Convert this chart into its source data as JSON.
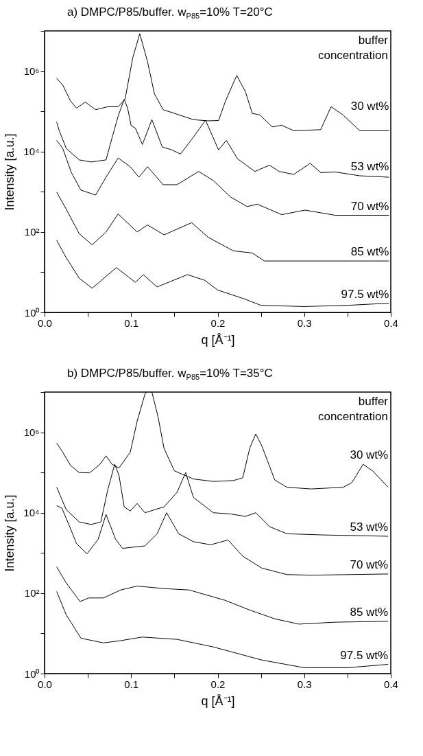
{
  "chart_data": [
    {
      "type": "line",
      "title": "a) DMPC/P85/buffer. w$_{P85}$=10% T=20°C",
      "xlabel": "q [Å⁻¹]",
      "ylabel": "Intensity [a.u.]",
      "legend_title": "buffer concentration",
      "log": true,
      "xlim": [
        0,
        0.4
      ],
      "ylim": [
        1,
        10000000
      ],
      "xticks": [
        {
          "value": 0,
          "label": "0.0"
        },
        {
          "value": 0.05,
          "label": null
        },
        0.1,
        {
          "value": 0.15,
          "label": null
        },
        0.2,
        {
          "value": 0.25,
          "label": null
        },
        0.3,
        {
          "value": 0.35,
          "label": null
        },
        0.4
      ],
      "yticks": [
        {
          "value": 1,
          "label": "10⁰"
        },
        {
          "value": 10,
          "label": null
        },
        {
          "value": 100,
          "label": "10²"
        },
        {
          "value": 1000,
          "label": null
        },
        {
          "value": 10000,
          "label": "10⁴"
        },
        {
          "value": 100000,
          "label": null
        },
        {
          "value": 1000000,
          "label": "10⁶"
        },
        {
          "value": 10000000,
          "label": null
        }
      ],
      "series": [
        {
          "name": "30 wt%",
          "color": "#000000",
          "x": [
            0.014,
            0.021,
            0.03,
            0.037,
            0.047,
            0.059,
            0.073,
            0.085,
            0.093,
            0.102,
            0.11,
            0.119,
            0.127,
            0.137,
            0.15,
            0.172,
            0.189,
            0.201,
            0.209,
            0.222,
            0.232,
            0.24,
            0.249,
            0.263,
            0.274,
            0.288,
            0.319,
            0.331,
            0.345,
            0.364,
            0.398
          ],
          "values": [
            660000,
            450000,
            180000,
            120000,
            170000,
            110000,
            130000,
            130000,
            200000,
            2200000,
            8500000,
            1700000,
            270000,
            110000,
            89000,
            62000,
            58000,
            59000,
            180000,
            780000,
            310000,
            89000,
            81000,
            41000,
            45000,
            33000,
            35000,
            130000,
            81000,
            33000,
            33000
          ]
        },
        {
          "name": "53 wt%",
          "color": "#000000",
          "x": [
            0.014,
            0.017,
            0.025,
            0.04,
            0.054,
            0.071,
            0.078,
            0.085,
            0.092,
            0.096,
            0.1,
            0.105,
            0.113,
            0.124,
            0.136,
            0.147,
            0.157,
            0.17,
            0.186,
            0.201,
            0.21,
            0.223,
            0.243,
            0.26,
            0.271,
            0.288,
            0.307,
            0.319,
            0.336,
            0.364,
            0.398
          ],
          "values": [
            54000,
            33000,
            12000,
            6200,
            5500,
            6200,
            22000,
            76000,
            200000,
            120000,
            44000,
            38000,
            15000,
            62000,
            13000,
            11000,
            8700,
            20000,
            60000,
            11000,
            19000,
            6600,
            3200,
            4600,
            3200,
            2700,
            5100,
            3000,
            3100,
            2500,
            2300
          ]
        },
        {
          "name": "70 wt%",
          "color": "#000000",
          "x": [
            0.014,
            0.021,
            0.031,
            0.042,
            0.059,
            0.071,
            0.085,
            0.099,
            0.109,
            0.119,
            0.137,
            0.153,
            0.178,
            0.195,
            0.215,
            0.234,
            0.246,
            0.274,
            0.301,
            0.336,
            0.398
          ],
          "values": [
            19000,
            12000,
            3000,
            1100,
            830,
            2300,
            6900,
            4200,
            2300,
            4200,
            1500,
            1500,
            3200,
            1900,
            740,
            430,
            490,
            270,
            350,
            260,
            260
          ]
        },
        {
          "name": "85 wt%",
          "color": "#000000",
          "x": [
            0.014,
            0.025,
            0.04,
            0.055,
            0.071,
            0.085,
            0.107,
            0.119,
            0.138,
            0.17,
            0.189,
            0.218,
            0.24,
            0.254,
            0.294,
            0.398
          ],
          "values": [
            980,
            370,
            91,
            48,
            100,
            280,
            100,
            150,
            85,
            170,
            74,
            34,
            30,
            19,
            19,
            19
          ]
        },
        {
          "name": "97.5 wt%",
          "color": "#000000",
          "x": [
            0.014,
            0.025,
            0.04,
            0.055,
            0.083,
            0.105,
            0.114,
            0.13,
            0.165,
            0.185,
            0.2,
            0.23,
            0.25,
            0.3,
            0.35,
            0.398
          ],
          "values": [
            62,
            23,
            7.1,
            4.0,
            13,
            5.6,
            8.7,
            4.3,
            8.7,
            6.3,
            3.6,
            2.2,
            1.5,
            1.4,
            1.5,
            1.7
          ]
        }
      ]
    },
    {
      "type": "line",
      "title": "b) DMPC/P85/buffer. w$_{P85}$=10% T=35°C",
      "xlabel": "q [Å⁻¹]",
      "ylabel": "Intensity [a.u.]",
      "legend_title": "buffer concentration",
      "log": true,
      "xlim": [
        0,
        0.4
      ],
      "ylim": [
        1,
        10000000
      ],
      "xticks": [
        {
          "value": 0,
          "label": "0.0"
        },
        {
          "value": 0.05,
          "label": null
        },
        0.1,
        {
          "value": 0.15,
          "label": null
        },
        0.2,
        {
          "value": 0.25,
          "label": null
        },
        0.3,
        {
          "value": 0.35,
          "label": null
        },
        0.4
      ],
      "yticks": [
        {
          "value": 1,
          "label": "10⁰"
        },
        {
          "value": 10,
          "label": null
        },
        {
          "value": 100,
          "label": "10²"
        },
        {
          "value": 1000,
          "label": null
        },
        {
          "value": 10000,
          "label": "10⁴"
        },
        {
          "value": 100000,
          "label": null
        },
        {
          "value": 1000000,
          "label": "10⁶"
        },
        {
          "value": 10000000,
          "label": null
        }
      ],
      "series": [
        {
          "name": "30 wt%",
          "color": "#000000",
          "x": [
            0.014,
            0.021,
            0.03,
            0.04,
            0.052,
            0.064,
            0.071,
            0.078,
            0.086,
            0.099,
            0.107,
            0.116,
            0.118,
            0.121,
            0.124,
            0.131,
            0.138,
            0.15,
            0.172,
            0.195,
            0.218,
            0.229,
            0.237,
            0.244,
            0.251,
            0.266,
            0.28,
            0.308,
            0.345,
            0.355,
            0.368,
            0.379,
            0.397
          ],
          "values": [
            540000,
            320000,
            150000,
            100000,
            98000,
            160000,
            260000,
            160000,
            130000,
            320000,
            1900000,
            8900000,
            10000000,
            null,
            10000000,
            2500000,
            400000,
            110000,
            69000,
            60000,
            63000,
            74000,
            400000,
            910000,
            460000,
            65000,
            43000,
            39000,
            43000,
            56000,
            160000,
            110000,
            43000
          ]
        },
        {
          "name": "53 wt%",
          "color": "#000000",
          "x": [
            0.014,
            0.025,
            0.04,
            0.054,
            0.065,
            0.073,
            0.081,
            0.086,
            0.092,
            0.099,
            0.107,
            0.116,
            0.138,
            0.153,
            0.163,
            0.172,
            0.195,
            0.215,
            0.232,
            0.244,
            0.26,
            0.28,
            0.322,
            0.397
          ],
          "values": [
            43000,
            12000,
            5900,
            5100,
            5900,
            37000,
            160000,
            85000,
            14000,
            11000,
            17000,
            10000,
            14000,
            32000,
            100000,
            24000,
            10000,
            9300,
            8100,
            10000,
            4500,
            3000,
            2800,
            2600
          ]
        },
        {
          "name": "70 wt%",
          "color": "#000000",
          "x": [
            0.014,
            0.02,
            0.028,
            0.037,
            0.049,
            0.062,
            0.071,
            0.082,
            0.09,
            0.116,
            0.13,
            0.141,
            0.155,
            0.172,
            0.192,
            0.212,
            0.229,
            0.251,
            0.28,
            0.308,
            0.397
          ],
          "values": [
            15000,
            13000,
            5100,
            1700,
            950,
            2200,
            9100,
            2200,
            1300,
            1500,
            3000,
            10000,
            3000,
            1900,
            1600,
            2100,
            830,
            420,
            290,
            280,
            300
          ]
        },
        {
          "name": "85 wt%",
          "color": "#000000",
          "x": [
            0.014,
            0.025,
            0.041,
            0.051,
            0.068,
            0.088,
            0.107,
            0.138,
            0.167,
            0.209,
            0.237,
            0.266,
            0.294,
            0.336,
            0.397
          ],
          "values": [
            450,
            180,
            62,
            76,
            76,
            120,
            150,
            130,
            120,
            66,
            38,
            23,
            17,
            19,
            20
          ]
        },
        {
          "name": "97.5 wt%",
          "color": "#000000",
          "x": [
            0.014,
            0.025,
            0.042,
            0.068,
            0.088,
            0.113,
            0.153,
            0.195,
            0.25,
            0.3,
            0.35,
            0.397
          ],
          "values": [
            110,
            29,
            7.6,
            5.8,
            6.6,
            8.1,
            7.1,
            4.6,
            2.2,
            1.4,
            1.4,
            1.7
          ]
        }
      ]
    }
  ]
}
